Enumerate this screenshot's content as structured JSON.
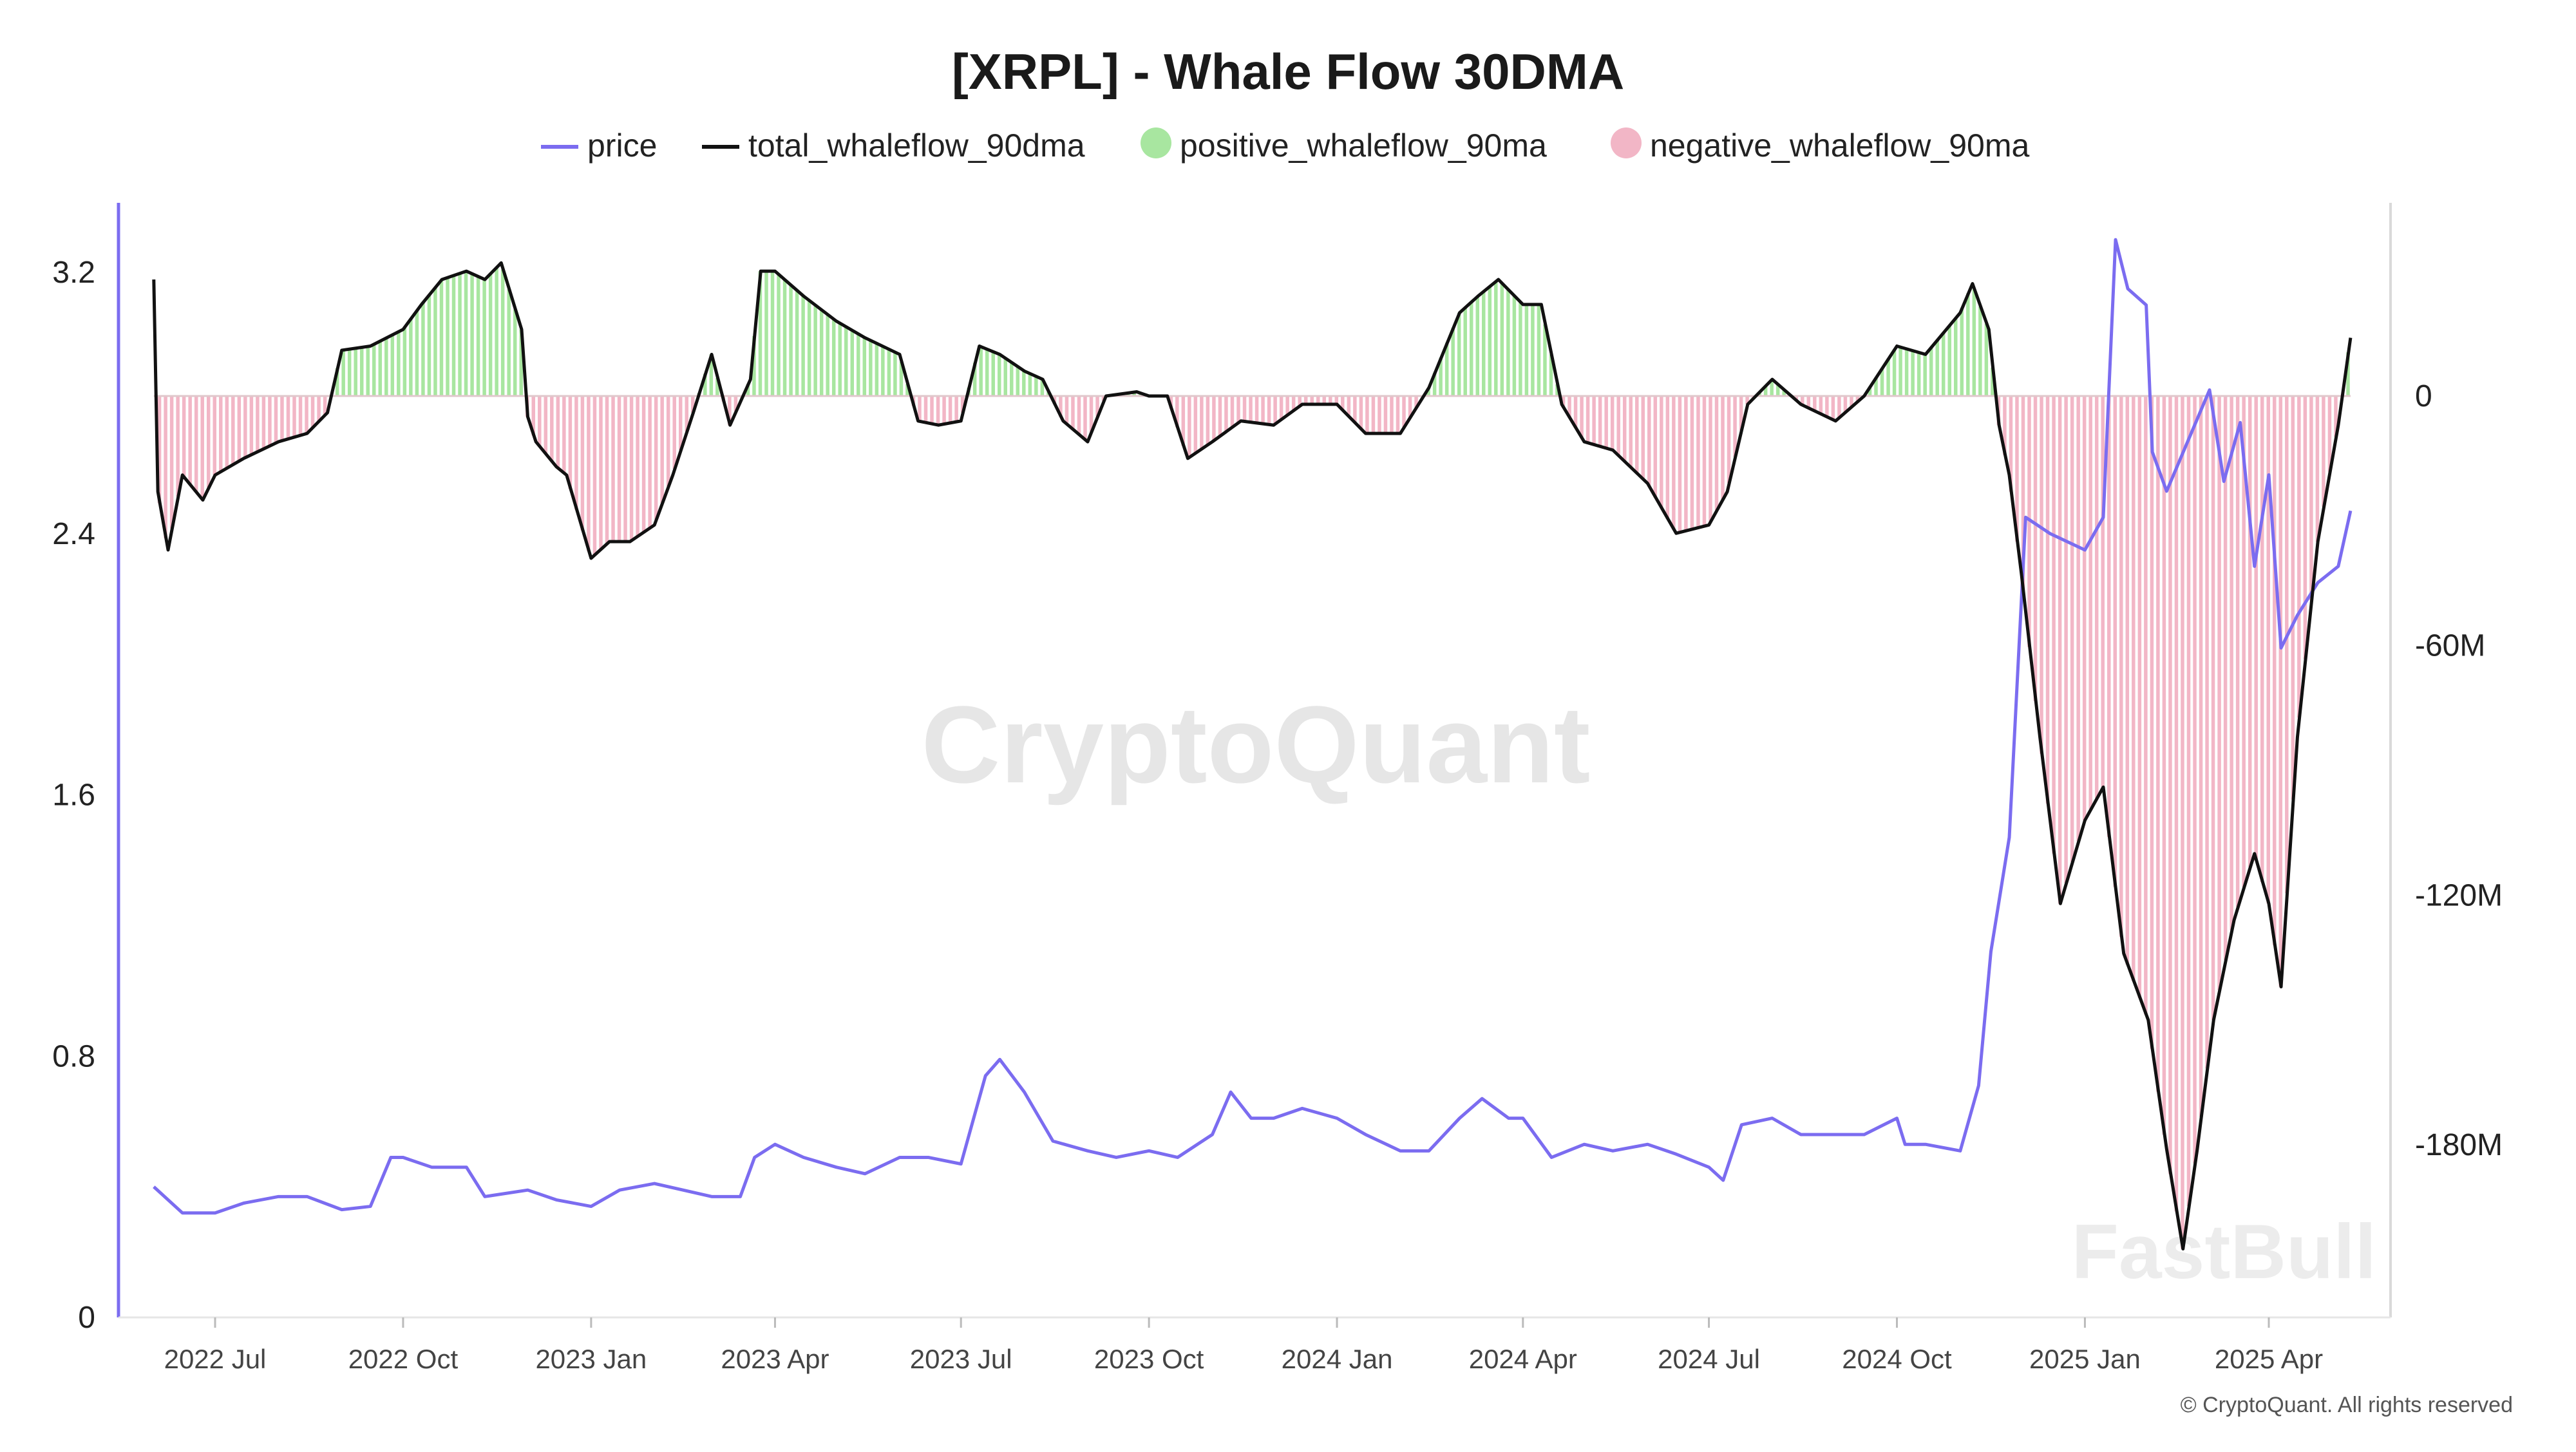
{
  "chart_data": {
    "type": "line",
    "title": "[XRPL] - Whale Flow 30DMA",
    "legend": [
      {
        "name": "price",
        "color": "#7b6cf0",
        "marker": "line"
      },
      {
        "name": "total_whaleflow_90dma",
        "color": "#111111",
        "marker": "line"
      },
      {
        "name": "positive_whaleflow_90ma",
        "color": "#a8e6a0",
        "marker": "dot"
      },
      {
        "name": "negative_whaleflow_90ma",
        "color": "#f2b6c6",
        "marker": "dot"
      }
    ],
    "legend_position": "top",
    "grid": false,
    "x_ticks": [
      "2022 Jul",
      "2022 Oct",
      "2023 Jan",
      "2023 Apr",
      "2023 Jul",
      "2023 Oct",
      "2024 Jan",
      "2024 Apr",
      "2024 Jul",
      "2024 Oct",
      "2025 Jan",
      "2025 Apr"
    ],
    "x_tick_dates": [
      "2022-07-01",
      "2022-10-01",
      "2023-01-01",
      "2023-04-01",
      "2023-07-01",
      "2023-10-01",
      "2024-01-01",
      "2024-04-01",
      "2024-07-01",
      "2024-10-01",
      "2025-01-01",
      "2025-04-01"
    ],
    "y_left": {
      "ticks": [
        "0",
        "0.8",
        "1.6",
        "2.4",
        "3.2"
      ],
      "range": [
        0,
        3.4
      ]
    },
    "y_right": {
      "ticks": [
        "0",
        "-60M",
        "-120M",
        "-180M"
      ],
      "tick_values": [
        0,
        -60,
        -120,
        -180
      ],
      "unit": "M",
      "range": [
        -221,
        46
      ]
    },
    "price": [
      [
        "2022-06-01",
        0.4
      ],
      [
        "2022-06-15",
        0.32
      ],
      [
        "2022-07-01",
        0.32
      ],
      [
        "2022-07-15",
        0.35
      ],
      [
        "2022-08-01",
        0.37
      ],
      [
        "2022-08-15",
        0.37
      ],
      [
        "2022-09-01",
        0.33
      ],
      [
        "2022-09-15",
        0.34
      ],
      [
        "2022-09-25",
        0.49
      ],
      [
        "2022-10-01",
        0.49
      ],
      [
        "2022-10-15",
        0.46
      ],
      [
        "2022-11-01",
        0.46
      ],
      [
        "2022-11-10",
        0.37
      ],
      [
        "2022-12-01",
        0.39
      ],
      [
        "2022-12-15",
        0.36
      ],
      [
        "2023-01-01",
        0.34
      ],
      [
        "2023-01-15",
        0.39
      ],
      [
        "2023-02-01",
        0.41
      ],
      [
        "2023-02-15",
        0.39
      ],
      [
        "2023-03-01",
        0.37
      ],
      [
        "2023-03-15",
        0.37
      ],
      [
        "2023-03-22",
        0.49
      ],
      [
        "2023-04-01",
        0.53
      ],
      [
        "2023-04-15",
        0.49
      ],
      [
        "2023-05-01",
        0.46
      ],
      [
        "2023-05-15",
        0.44
      ],
      [
        "2023-06-01",
        0.49
      ],
      [
        "2023-06-15",
        0.49
      ],
      [
        "2023-07-01",
        0.47
      ],
      [
        "2023-07-13",
        0.74
      ],
      [
        "2023-07-20",
        0.79
      ],
      [
        "2023-08-01",
        0.69
      ],
      [
        "2023-08-15",
        0.54
      ],
      [
        "2023-09-01",
        0.51
      ],
      [
        "2023-09-15",
        0.49
      ],
      [
        "2023-10-01",
        0.51
      ],
      [
        "2023-10-15",
        0.49
      ],
      [
        "2023-11-01",
        0.56
      ],
      [
        "2023-11-10",
        0.69
      ],
      [
        "2023-11-20",
        0.61
      ],
      [
        "2023-12-01",
        0.61
      ],
      [
        "2023-12-15",
        0.64
      ],
      [
        "2024-01-01",
        0.61
      ],
      [
        "2024-01-15",
        0.56
      ],
      [
        "2024-02-01",
        0.51
      ],
      [
        "2024-02-15",
        0.51
      ],
      [
        "2024-03-01",
        0.61
      ],
      [
        "2024-03-12",
        0.67
      ],
      [
        "2024-03-25",
        0.61
      ],
      [
        "2024-04-01",
        0.61
      ],
      [
        "2024-04-15",
        0.49
      ],
      [
        "2024-05-01",
        0.53
      ],
      [
        "2024-05-15",
        0.51
      ],
      [
        "2024-06-01",
        0.53
      ],
      [
        "2024-06-15",
        0.5
      ],
      [
        "2024-07-01",
        0.46
      ],
      [
        "2024-07-08",
        0.42
      ],
      [
        "2024-07-17",
        0.59
      ],
      [
        "2024-08-01",
        0.61
      ],
      [
        "2024-08-15",
        0.56
      ],
      [
        "2024-09-01",
        0.56
      ],
      [
        "2024-09-15",
        0.56
      ],
      [
        "2024-10-01",
        0.61
      ],
      [
        "2024-10-05",
        0.53
      ],
      [
        "2024-10-15",
        0.53
      ],
      [
        "2024-11-01",
        0.51
      ],
      [
        "2024-11-10",
        0.71
      ],
      [
        "2024-11-16",
        1.12
      ],
      [
        "2024-11-25",
        1.47
      ],
      [
        "2024-12-03",
        2.45
      ],
      [
        "2024-12-15",
        2.4
      ],
      [
        "2025-01-01",
        2.35
      ],
      [
        "2025-01-10",
        2.45
      ],
      [
        "2025-01-16",
        3.3
      ],
      [
        "2025-01-22",
        3.15
      ],
      [
        "2025-01-31",
        3.1
      ],
      [
        "2025-02-03",
        2.65
      ],
      [
        "2025-02-10",
        2.53
      ],
      [
        "2025-03-03",
        2.84
      ],
      [
        "2025-03-10",
        2.56
      ],
      [
        "2025-03-18",
        2.74
      ],
      [
        "2025-03-25",
        2.3
      ],
      [
        "2025-04-01",
        2.58
      ],
      [
        "2025-04-07",
        2.05
      ],
      [
        "2025-04-15",
        2.15
      ],
      [
        "2025-04-25",
        2.25
      ],
      [
        "2025-05-05",
        2.3
      ],
      [
        "2025-05-11",
        2.47
      ]
    ],
    "total_whaleflow_90dma": [
      [
        "2022-06-01",
        28
      ],
      [
        "2022-06-03",
        -23
      ],
      [
        "2022-06-08",
        -37
      ],
      [
        "2022-06-15",
        -19
      ],
      [
        "2022-06-25",
        -25
      ],
      [
        "2022-07-01",
        -19
      ],
      [
        "2022-07-15",
        -15
      ],
      [
        "2022-08-01",
        -11
      ],
      [
        "2022-08-15",
        -9
      ],
      [
        "2022-08-25",
        -4
      ],
      [
        "2022-09-01",
        11
      ],
      [
        "2022-09-15",
        12
      ],
      [
        "2022-10-01",
        16
      ],
      [
        "2022-10-10",
        22
      ],
      [
        "2022-10-20",
        28
      ],
      [
        "2022-11-01",
        30
      ],
      [
        "2022-11-10",
        28
      ],
      [
        "2022-11-18",
        32
      ],
      [
        "2022-11-28",
        16
      ],
      [
        "2022-12-01",
        -5
      ],
      [
        "2022-12-05",
        -11
      ],
      [
        "2022-12-15",
        -17
      ],
      [
        "2022-12-20",
        -19
      ],
      [
        "2023-01-01",
        -39
      ],
      [
        "2023-01-10",
        -35
      ],
      [
        "2023-01-20",
        -35
      ],
      [
        "2023-02-01",
        -31
      ],
      [
        "2023-02-10",
        -19
      ],
      [
        "2023-02-20",
        -4
      ],
      [
        "2023-03-01",
        10
      ],
      [
        "2023-03-10",
        -7
      ],
      [
        "2023-03-20",
        4
      ],
      [
        "2023-03-25",
        30
      ],
      [
        "2023-04-01",
        30
      ],
      [
        "2023-04-15",
        24
      ],
      [
        "2023-05-01",
        18
      ],
      [
        "2023-05-15",
        14
      ],
      [
        "2023-06-01",
        10
      ],
      [
        "2023-06-10",
        -6
      ],
      [
        "2023-06-20",
        -7
      ],
      [
        "2023-07-01",
        -6
      ],
      [
        "2023-07-10",
        12
      ],
      [
        "2023-07-20",
        10
      ],
      [
        "2023-08-01",
        6
      ],
      [
        "2023-08-10",
        4
      ],
      [
        "2023-08-20",
        -6
      ],
      [
        "2023-09-01",
        -11
      ],
      [
        "2023-09-10",
        0
      ],
      [
        "2023-09-25",
        1
      ],
      [
        "2023-10-01",
        0
      ],
      [
        "2023-10-10",
        0
      ],
      [
        "2023-10-20",
        -15
      ],
      [
        "2023-11-01",
        -11
      ],
      [
        "2023-11-15",
        -6
      ],
      [
        "2023-12-01",
        -7
      ],
      [
        "2023-12-15",
        -2
      ],
      [
        "2024-01-01",
        -2
      ],
      [
        "2024-01-15",
        -9
      ],
      [
        "2024-02-01",
        -9
      ],
      [
        "2024-02-15",
        2
      ],
      [
        "2024-03-01",
        20
      ],
      [
        "2024-03-10",
        24
      ],
      [
        "2024-03-20",
        28
      ],
      [
        "2024-04-01",
        22
      ],
      [
        "2024-04-10",
        22
      ],
      [
        "2024-04-20",
        -2
      ],
      [
        "2024-05-01",
        -11
      ],
      [
        "2024-05-15",
        -13
      ],
      [
        "2024-06-01",
        -21
      ],
      [
        "2024-06-15",
        -33
      ],
      [
        "2024-07-01",
        -31
      ],
      [
        "2024-07-10",
        -23
      ],
      [
        "2024-07-20",
        -2
      ],
      [
        "2024-08-01",
        4
      ],
      [
        "2024-08-15",
        -2
      ],
      [
        "2024-09-01",
        -6
      ],
      [
        "2024-09-15",
        0
      ],
      [
        "2024-10-01",
        12
      ],
      [
        "2024-10-15",
        10
      ],
      [
        "2024-11-01",
        20
      ],
      [
        "2024-11-07",
        27
      ],
      [
        "2024-11-15",
        16
      ],
      [
        "2024-11-20",
        -7
      ],
      [
        "2024-11-25",
        -19
      ],
      [
        "2024-12-01",
        -43
      ],
      [
        "2024-12-10",
        -82
      ],
      [
        "2024-12-20",
        -122
      ],
      [
        "2025-01-01",
        -102
      ],
      [
        "2025-01-10",
        -94
      ],
      [
        "2025-01-20",
        -134
      ],
      [
        "2025-02-01",
        -150
      ],
      [
        "2025-02-10",
        -181
      ],
      [
        "2025-02-18",
        -205
      ],
      [
        "2025-02-25",
        -181
      ],
      [
        "2025-03-05",
        -150
      ],
      [
        "2025-03-15",
        -126
      ],
      [
        "2025-03-25",
        -110
      ],
      [
        "2025-04-01",
        -122
      ],
      [
        "2025-04-07",
        -142
      ],
      [
        "2025-04-15",
        -82
      ],
      [
        "2025-04-25",
        -35
      ],
      [
        "2025-05-05",
        -7
      ],
      [
        "2025-05-11",
        14
      ]
    ]
  },
  "watermark": "CryptoQuant",
  "corner_watermark": "FastBull",
  "copyright": "© CryptoQuant. All rights reserved"
}
